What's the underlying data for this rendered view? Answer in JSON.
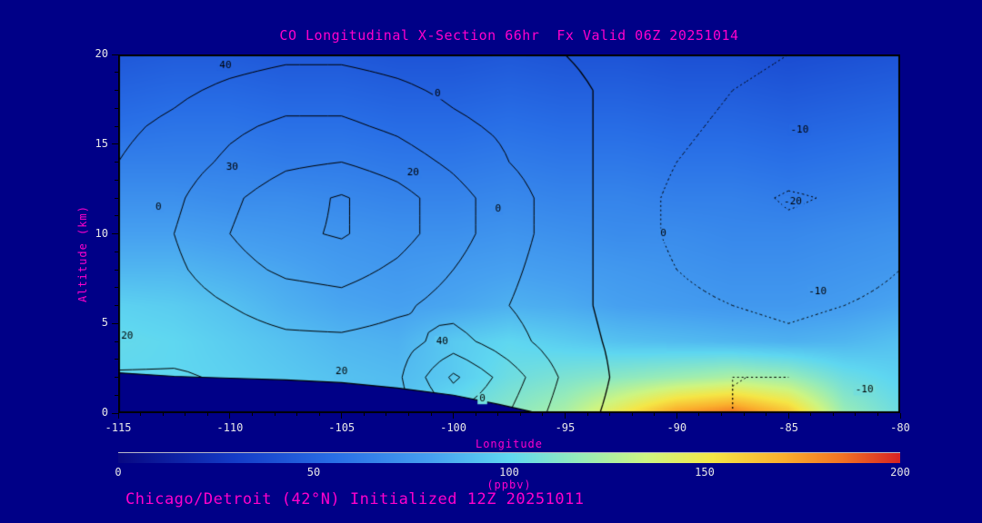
{
  "page": {
    "background": "#000087",
    "magenta": "#ff00cc",
    "tick_text": "#e8e8e8"
  },
  "title": {
    "text": "CO Longitudinal X-Section 66hr  Fx Valid 06Z 20251014"
  },
  "footer": {
    "text": "Chicago/Detroit (42°N) Initialized 12Z 20251011"
  },
  "axes": {
    "x": {
      "label": "Longitude",
      "range": [
        -115,
        -80
      ],
      "ticks": [
        -115,
        -110,
        -105,
        -100,
        -95,
        -90,
        -85,
        -80
      ]
    },
    "y": {
      "label": "Altitude (km)",
      "range": [
        0,
        20
      ],
      "ticks": [
        0,
        5,
        10,
        15,
        20
      ]
    }
  },
  "colorbar": {
    "label": "(ppbv)",
    "range": [
      0,
      200
    ],
    "ticks": [
      0,
      50,
      100,
      150,
      200
    ],
    "stops": [
      {
        "v": 0,
        "rgb": [
          8,
          8,
          130
        ]
      },
      {
        "v": 30,
        "rgb": [
          20,
          60,
          200
        ]
      },
      {
        "v": 55,
        "rgb": [
          40,
          110,
          230
        ]
      },
      {
        "v": 80,
        "rgb": [
          70,
          160,
          240
        ]
      },
      {
        "v": 100,
        "rgb": [
          95,
          215,
          240
        ]
      },
      {
        "v": 118,
        "rgb": [
          150,
          235,
          185
        ]
      },
      {
        "v": 135,
        "rgb": [
          205,
          245,
          130
        ]
      },
      {
        "v": 152,
        "rgb": [
          245,
          230,
          70
        ]
      },
      {
        "v": 170,
        "rgb": [
          250,
          175,
          45
        ]
      },
      {
        "v": 185,
        "rgb": [
          242,
          115,
          35
        ]
      },
      {
        "v": 200,
        "rgb": [
          215,
          35,
          35
        ]
      }
    ]
  },
  "chart_data": {
    "type": "heatmap",
    "title": "CO Longitudinal X-Section 66hr  Fx Valid 06Z 20251014",
    "subtitle": "Chicago/Detroit (42°N) Initialized 12Z 20251011",
    "xlabel": "Longitude",
    "ylabel": "Altitude (km)",
    "units": "ppbv",
    "value_range": [
      0,
      200
    ],
    "legend_position": "bottom",
    "x": [
      -115,
      -112.5,
      -110,
      -107.5,
      -105,
      -102.5,
      -100,
      -97.5,
      -95,
      -92.5,
      -90,
      -87.5,
      -85,
      -82.5,
      -80
    ],
    "y": [
      0,
      2,
      4,
      6,
      8,
      10,
      12,
      14,
      16,
      18,
      20
    ],
    "co_ppbv": [
      [
        95,
        95,
        92,
        90,
        88,
        92,
        105,
        115,
        125,
        150,
        175,
        185,
        165,
        120,
        105
      ],
      [
        100,
        100,
        98,
        95,
        92,
        90,
        95,
        105,
        110,
        115,
        120,
        125,
        120,
        105,
        98
      ],
      [
        102,
        100,
        96,
        92,
        88,
        86,
        95,
        100,
        96,
        92,
        90,
        88,
        86,
        88,
        92
      ],
      [
        98,
        96,
        92,
        86,
        82,
        80,
        82,
        86,
        84,
        80,
        78,
        76,
        76,
        78,
        82
      ],
      [
        88,
        88,
        85,
        82,
        78,
        76,
        78,
        80,
        78,
        76,
        74,
        72,
        72,
        74,
        76
      ],
      [
        80,
        80,
        78,
        76,
        74,
        72,
        72,
        74,
        72,
        70,
        70,
        68,
        68,
        70,
        72
      ],
      [
        72,
        72,
        70,
        70,
        68,
        66,
        66,
        68,
        66,
        66,
        64,
        64,
        62,
        64,
        66
      ],
      [
        64,
        64,
        64,
        62,
        62,
        60,
        60,
        62,
        60,
        60,
        58,
        58,
        56,
        58,
        60
      ],
      [
        56,
        58,
        58,
        56,
        56,
        54,
        54,
        56,
        54,
        54,
        52,
        52,
        50,
        52,
        54
      ],
      [
        50,
        52,
        52,
        50,
        50,
        48,
        48,
        50,
        48,
        48,
        46,
        46,
        44,
        46,
        48
      ],
      [
        44,
        46,
        46,
        44,
        44,
        42,
        42,
        44,
        42,
        42,
        40,
        40,
        38,
        40,
        42
      ]
    ],
    "contour_overlay": {
      "levels": [
        -20,
        -10,
        0,
        10,
        20,
        30,
        40
      ],
      "negative_style": "dotted",
      "values": [
        [
          20,
          20,
          16,
          14,
          12,
          16,
          30,
          20,
          5,
          -3,
          -8,
          -10,
          -9,
          -7,
          -5
        ],
        [
          22,
          22,
          18,
          16,
          14,
          18,
          42,
          25,
          8,
          -2,
          -8,
          -10,
          -10,
          -8,
          -6
        ],
        [
          12,
          14,
          16,
          18,
          18,
          16,
          24,
          14,
          4,
          -2,
          -6,
          -8,
          -9,
          -8,
          -7
        ],
        [
          10,
          15,
          20,
          24,
          26,
          22,
          16,
          10,
          3,
          -3,
          -8,
          -10,
          -11,
          -10,
          -8
        ],
        [
          11,
          18,
          26,
          32,
          34,
          28,
          20,
          12,
          4,
          -4,
          -10,
          -13,
          -14,
          -13,
          -10
        ],
        [
          12,
          20,
          30,
          38,
          41,
          34,
          24,
          14,
          5,
          -5,
          -12,
          -16,
          -18,
          -17,
          -12
        ],
        [
          12,
          18,
          28,
          36,
          41,
          34,
          24,
          14,
          5,
          -5,
          -12,
          -17,
          -21,
          -19,
          -14
        ],
        [
          10,
          15,
          22,
          28,
          30,
          25,
          18,
          10,
          4,
          -4,
          -10,
          -14,
          -16,
          -16,
          -12
        ],
        [
          8,
          12,
          18,
          22,
          22,
          18,
          12,
          8,
          3,
          -3,
          -8,
          -12,
          -14,
          -14,
          -12
        ],
        [
          5,
          8,
          12,
          15,
          15,
          12,
          8,
          5,
          2,
          -2,
          -6,
          -10,
          -12,
          -12,
          -10
        ],
        [
          3,
          4,
          6,
          8,
          8,
          6,
          4,
          2,
          0,
          -3,
          -6,
          -8,
          -10,
          -11,
          -10
        ]
      ]
    },
    "terrain": {
      "x": [
        -115,
        -112.5,
        -110,
        -107.5,
        -105,
        -102.5,
        -100,
        -98,
        -96.5,
        -96
      ],
      "height_km": [
        2.25,
        2.05,
        1.95,
        1.85,
        1.7,
        1.4,
        1.0,
        0.5,
        0.08,
        0
      ]
    },
    "contour_labels": [
      {
        "t": "40",
        "x": -110.2,
        "y": 19.4
      },
      {
        "t": "0",
        "x": -100.7,
        "y": 17.8
      },
      {
        "t": "-10",
        "x": -84.5,
        "y": 15.8
      },
      {
        "t": "30",
        "x": -109.9,
        "y": 13.7
      },
      {
        "t": "20",
        "x": -101.8,
        "y": 13.4
      },
      {
        "t": "-20",
        "x": -84.8,
        "y": 11.8
      },
      {
        "t": "0",
        "x": -113.2,
        "y": 11.5
      },
      {
        "t": "0",
        "x": -98.0,
        "y": 11.4
      },
      {
        "t": "0",
        "x": -90.6,
        "y": 10.0
      },
      {
        "t": "-10",
        "x": -83.7,
        "y": 6.8
      },
      {
        "t": "20",
        "x": -114.6,
        "y": 4.3
      },
      {
        "t": "40",
        "x": -100.5,
        "y": 4.0
      },
      {
        "t": "20",
        "x": -105.0,
        "y": 2.3
      },
      {
        "t": "0",
        "x": -98.7,
        "y": 0.8
      },
      {
        "t": "-10",
        "x": -81.6,
        "y": 1.3
      }
    ]
  }
}
